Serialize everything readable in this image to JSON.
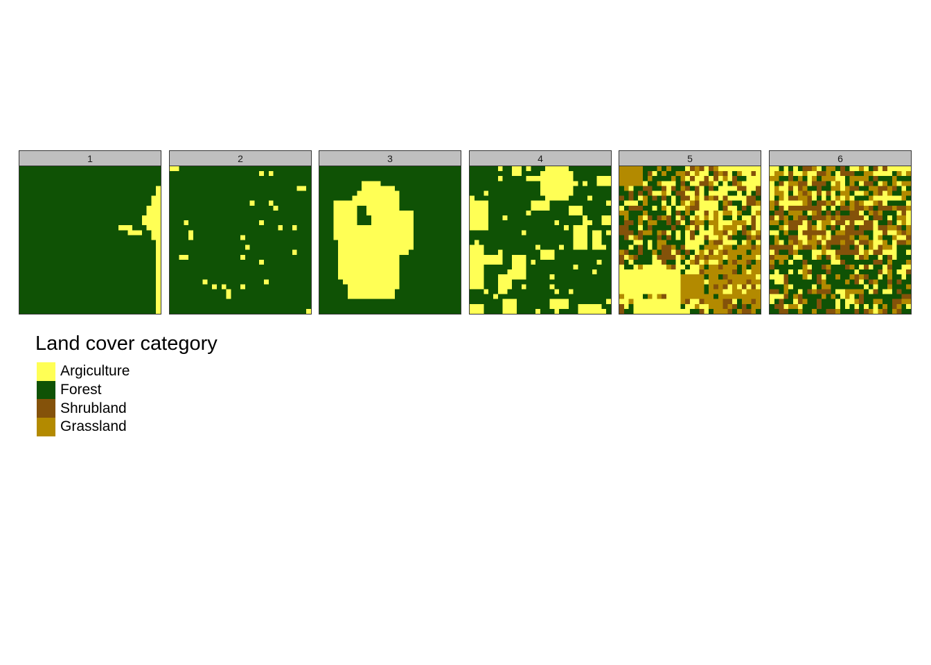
{
  "chart_data": {
    "type": "heatmap",
    "description_kind": "faceted categorical raster maps",
    "grid_size": 30,
    "facets": [
      "1",
      "2",
      "3",
      "4",
      "5",
      "6"
    ],
    "legend": {
      "title": "Land cover category",
      "placement": "bottom-left",
      "categories": [
        {
          "label": "Argiculture",
          "color": "#FFFF55"
        },
        {
          "label": "Forest",
          "color": "#0F5205"
        },
        {
          "label": "Shrubland",
          "color": "#84520A"
        },
        {
          "label": "Grassland",
          "color": "#B38A00"
        }
      ]
    },
    "approximate_cover_share": [
      {
        "facet": "1",
        "Argiculture": 0.06,
        "Forest": 0.94,
        "Shrubland": 0.0,
        "Grassland": 0.0
      },
      {
        "facet": "2",
        "Argiculture": 0.05,
        "Forest": 0.95,
        "Shrubland": 0.0,
        "Grassland": 0.0
      },
      {
        "facet": "3",
        "Argiculture": 0.3,
        "Forest": 0.7,
        "Shrubland": 0.0,
        "Grassland": 0.0
      },
      {
        "facet": "4",
        "Argiculture": 0.32,
        "Forest": 0.68,
        "Shrubland": 0.0,
        "Grassland": 0.0
      },
      {
        "facet": "5",
        "Argiculture": 0.33,
        "Forest": 0.25,
        "Shrubland": 0.17,
        "Grassland": 0.25
      },
      {
        "facet": "6",
        "Argiculture": 0.25,
        "Forest": 0.28,
        "Shrubland": 0.22,
        "Grassland": 0.25
      }
    ]
  }
}
